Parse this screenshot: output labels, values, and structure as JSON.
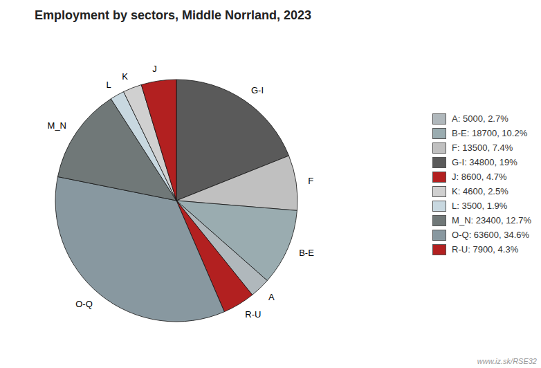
{
  "chart_data": {
    "type": "pie",
    "title": "Employment by sectors, Middle Norrland, 2023",
    "categories": [
      "G-I",
      "F",
      "B-E",
      "A",
      "R-U",
      "O-Q",
      "M_N",
      "L",
      "K",
      "J"
    ],
    "values": [
      34800,
      13500,
      18700,
      5000,
      7900,
      63600,
      23400,
      3500,
      4600,
      8600
    ],
    "colors": [
      "#5a5a5a",
      "#c0c0c0",
      "#9aacb0",
      "#b0b8bc",
      "#b22020",
      "#8898a0",
      "#707878",
      "#c8d8e0",
      "#d0d0d0",
      "#b22020"
    ],
    "legend": "right",
    "legend_entries": [
      {
        "category": "A",
        "label": "A: 5000, 2.7%"
      },
      {
        "category": "B-E",
        "label": "B-E: 18700, 10.2%"
      },
      {
        "category": "F",
        "label": "F: 13500, 7.4%"
      },
      {
        "category": "G-I",
        "label": "G-I: 34800, 19%"
      },
      {
        "category": "J",
        "label": "J: 8600, 4.7%"
      },
      {
        "category": "K",
        "label": "K: 4600, 2.5%"
      },
      {
        "category": "L",
        "label": "L: 3500, 1.9%"
      },
      {
        "category": "M_N",
        "label": "M_N: 23400, 12.7%"
      },
      {
        "category": "O-Q",
        "label": "O-Q: 63600, 34.6%"
      },
      {
        "category": "R-U",
        "label": "R-U: 7900, 4.3%"
      }
    ],
    "annotations": [
      "www.iz.sk/RSE32"
    ]
  }
}
